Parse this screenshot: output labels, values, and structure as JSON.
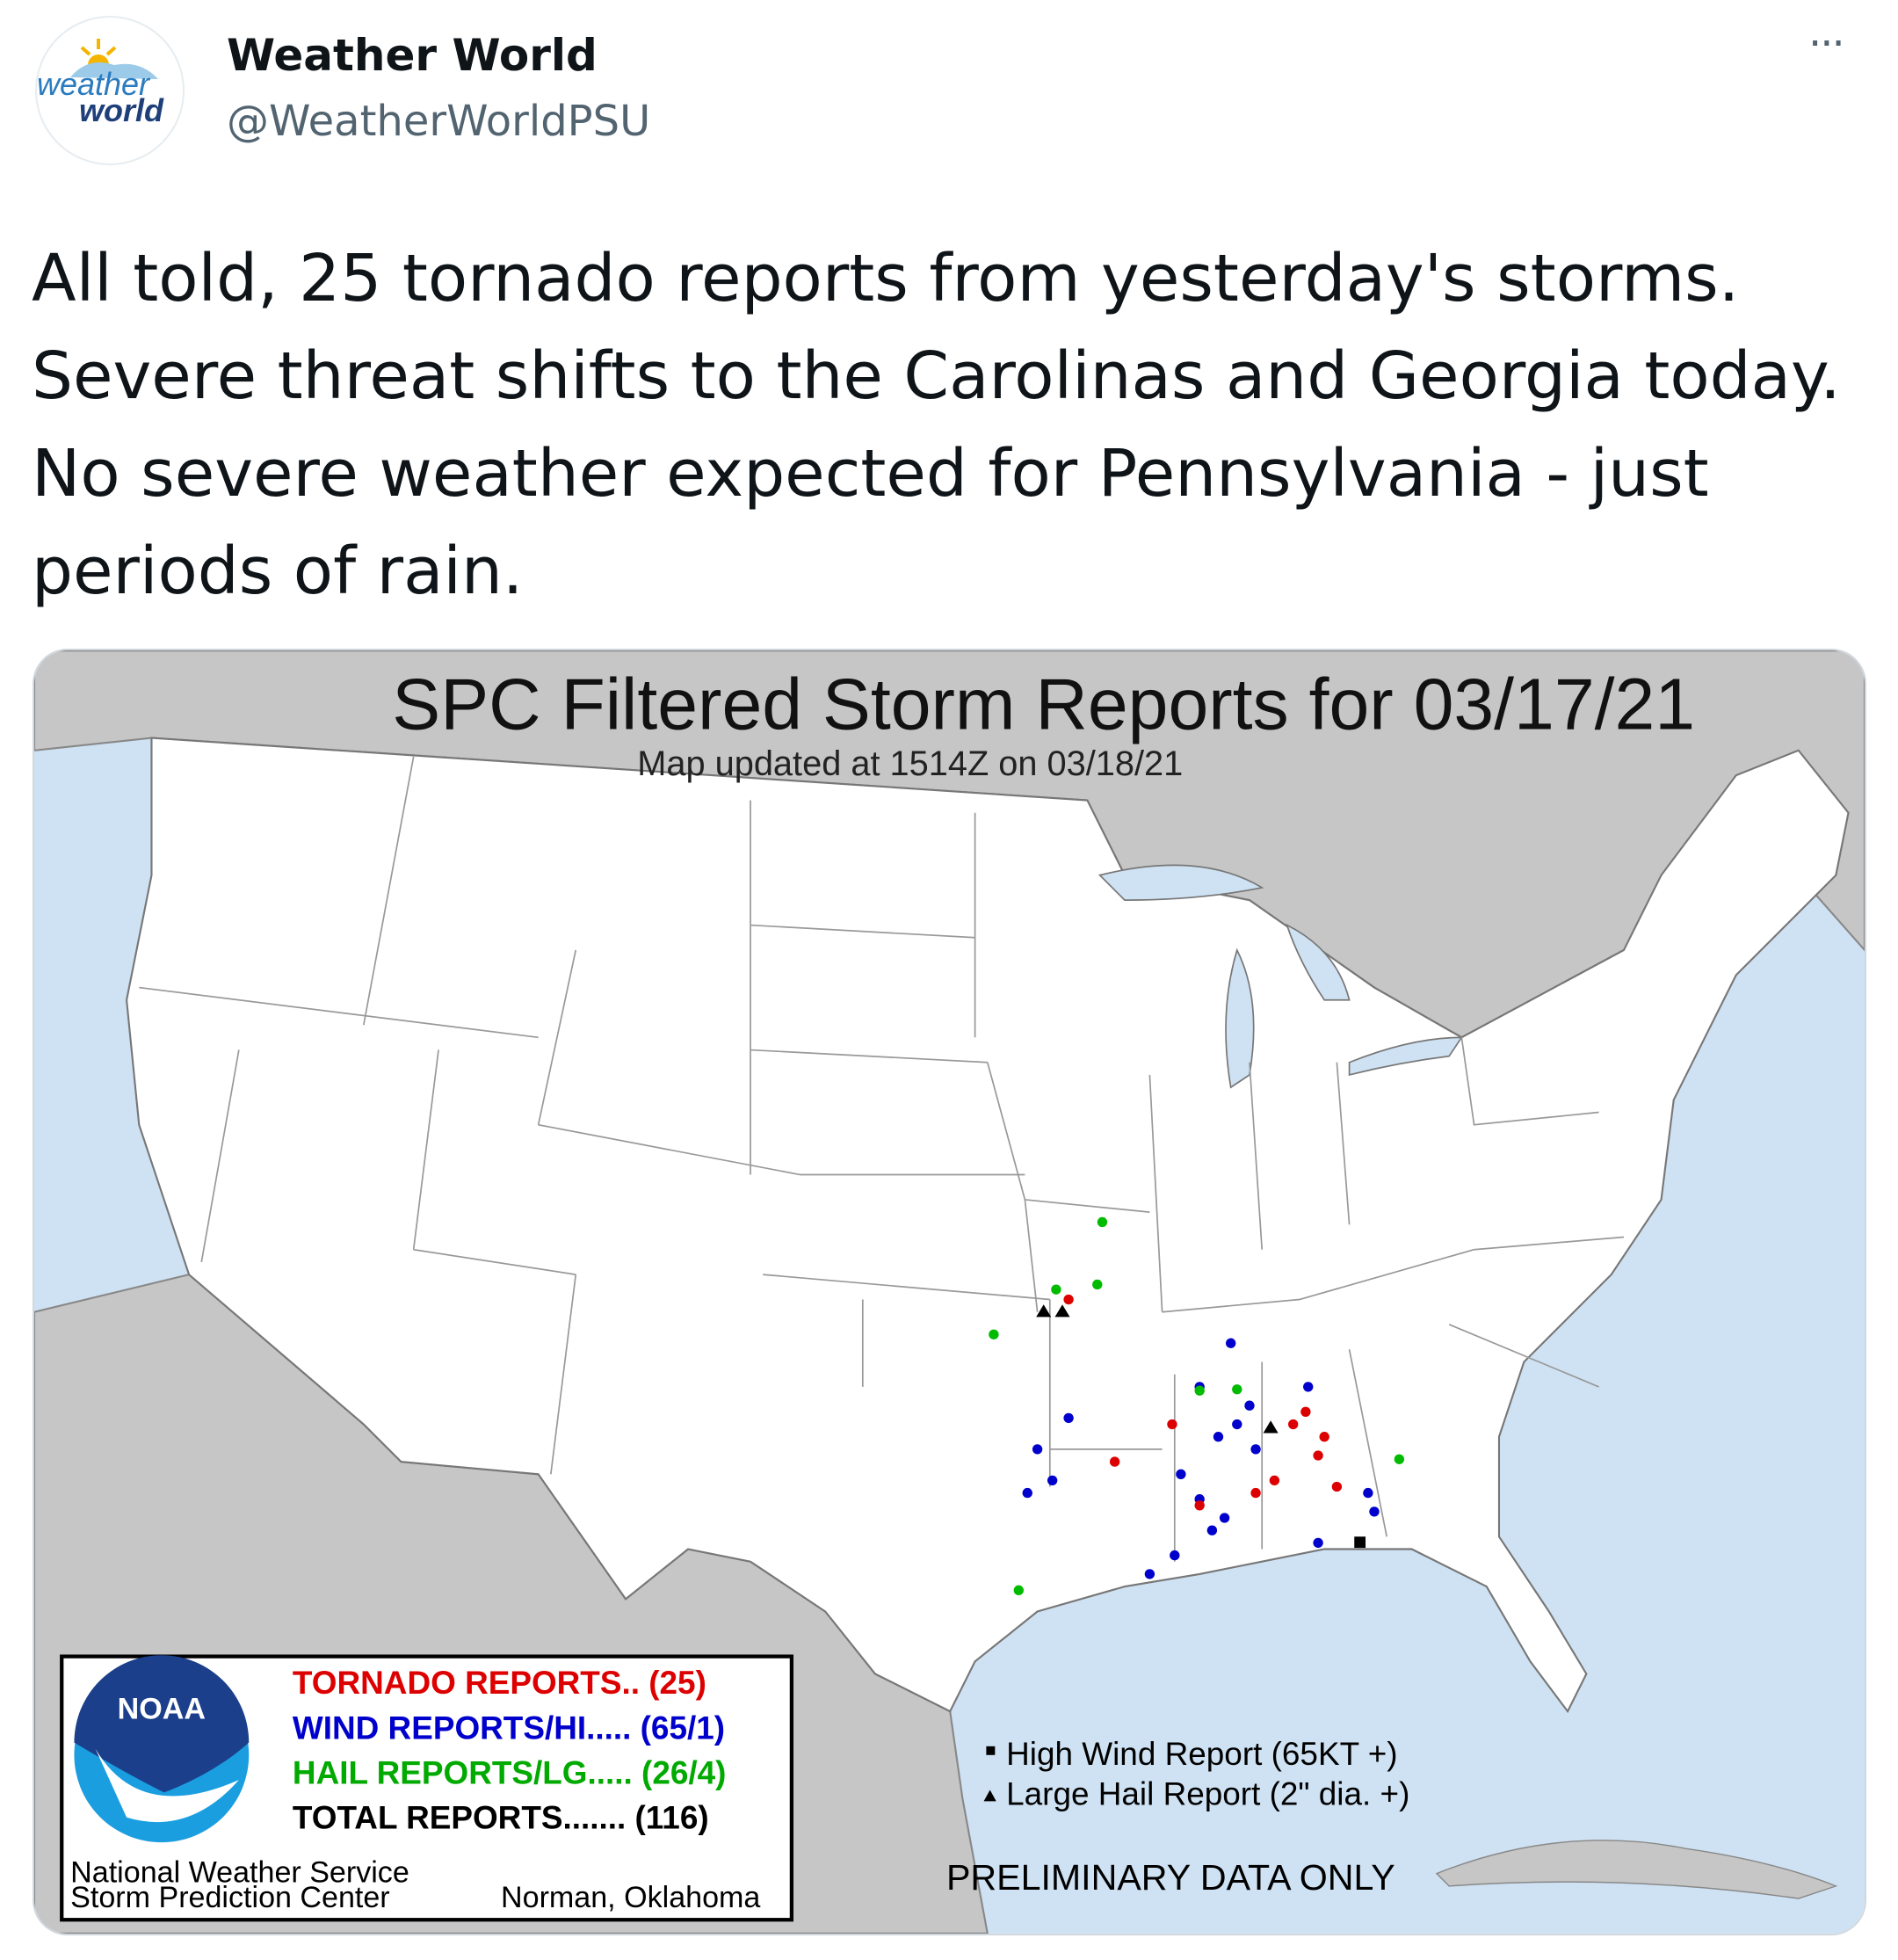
{
  "header": {
    "logo_top": "weather",
    "logo_bottom": "world",
    "name": "Weather World",
    "handle": "@WeatherWorldPSU",
    "more": "···"
  },
  "tweet": {
    "lines": [
      "All told, 25 tornado reports from yesterday's storms.",
      "Severe threat shifts to the Carolinas and Georgia today.",
      "No severe weather expected for Pennsylvania - just",
      "periods of rain."
    ]
  },
  "map": {
    "title": "SPC Filtered Storm Reports for 03/17/21",
    "subtitle": "Map updated at 1514Z on 03/18/21",
    "legend": {
      "logo": "NOAA",
      "tornado": "TORNADO REPORTS.. (25)",
      "wind": "WIND REPORTS/HI..... (65/1)",
      "hail": "HAIL REPORTS/LG..... (26/4)",
      "total": "TOTAL REPORTS....... (116)",
      "org_line1": "National Weather Service",
      "org_line2": "Storm Prediction Center",
      "location": "Norman, Oklahoma"
    },
    "notes": {
      "high_wind": "High Wind Report (65KT +)",
      "large_hail": "Large Hail Report (2\" dia. +)",
      "preliminary": "PRELIMINARY DATA ONLY"
    }
  }
}
